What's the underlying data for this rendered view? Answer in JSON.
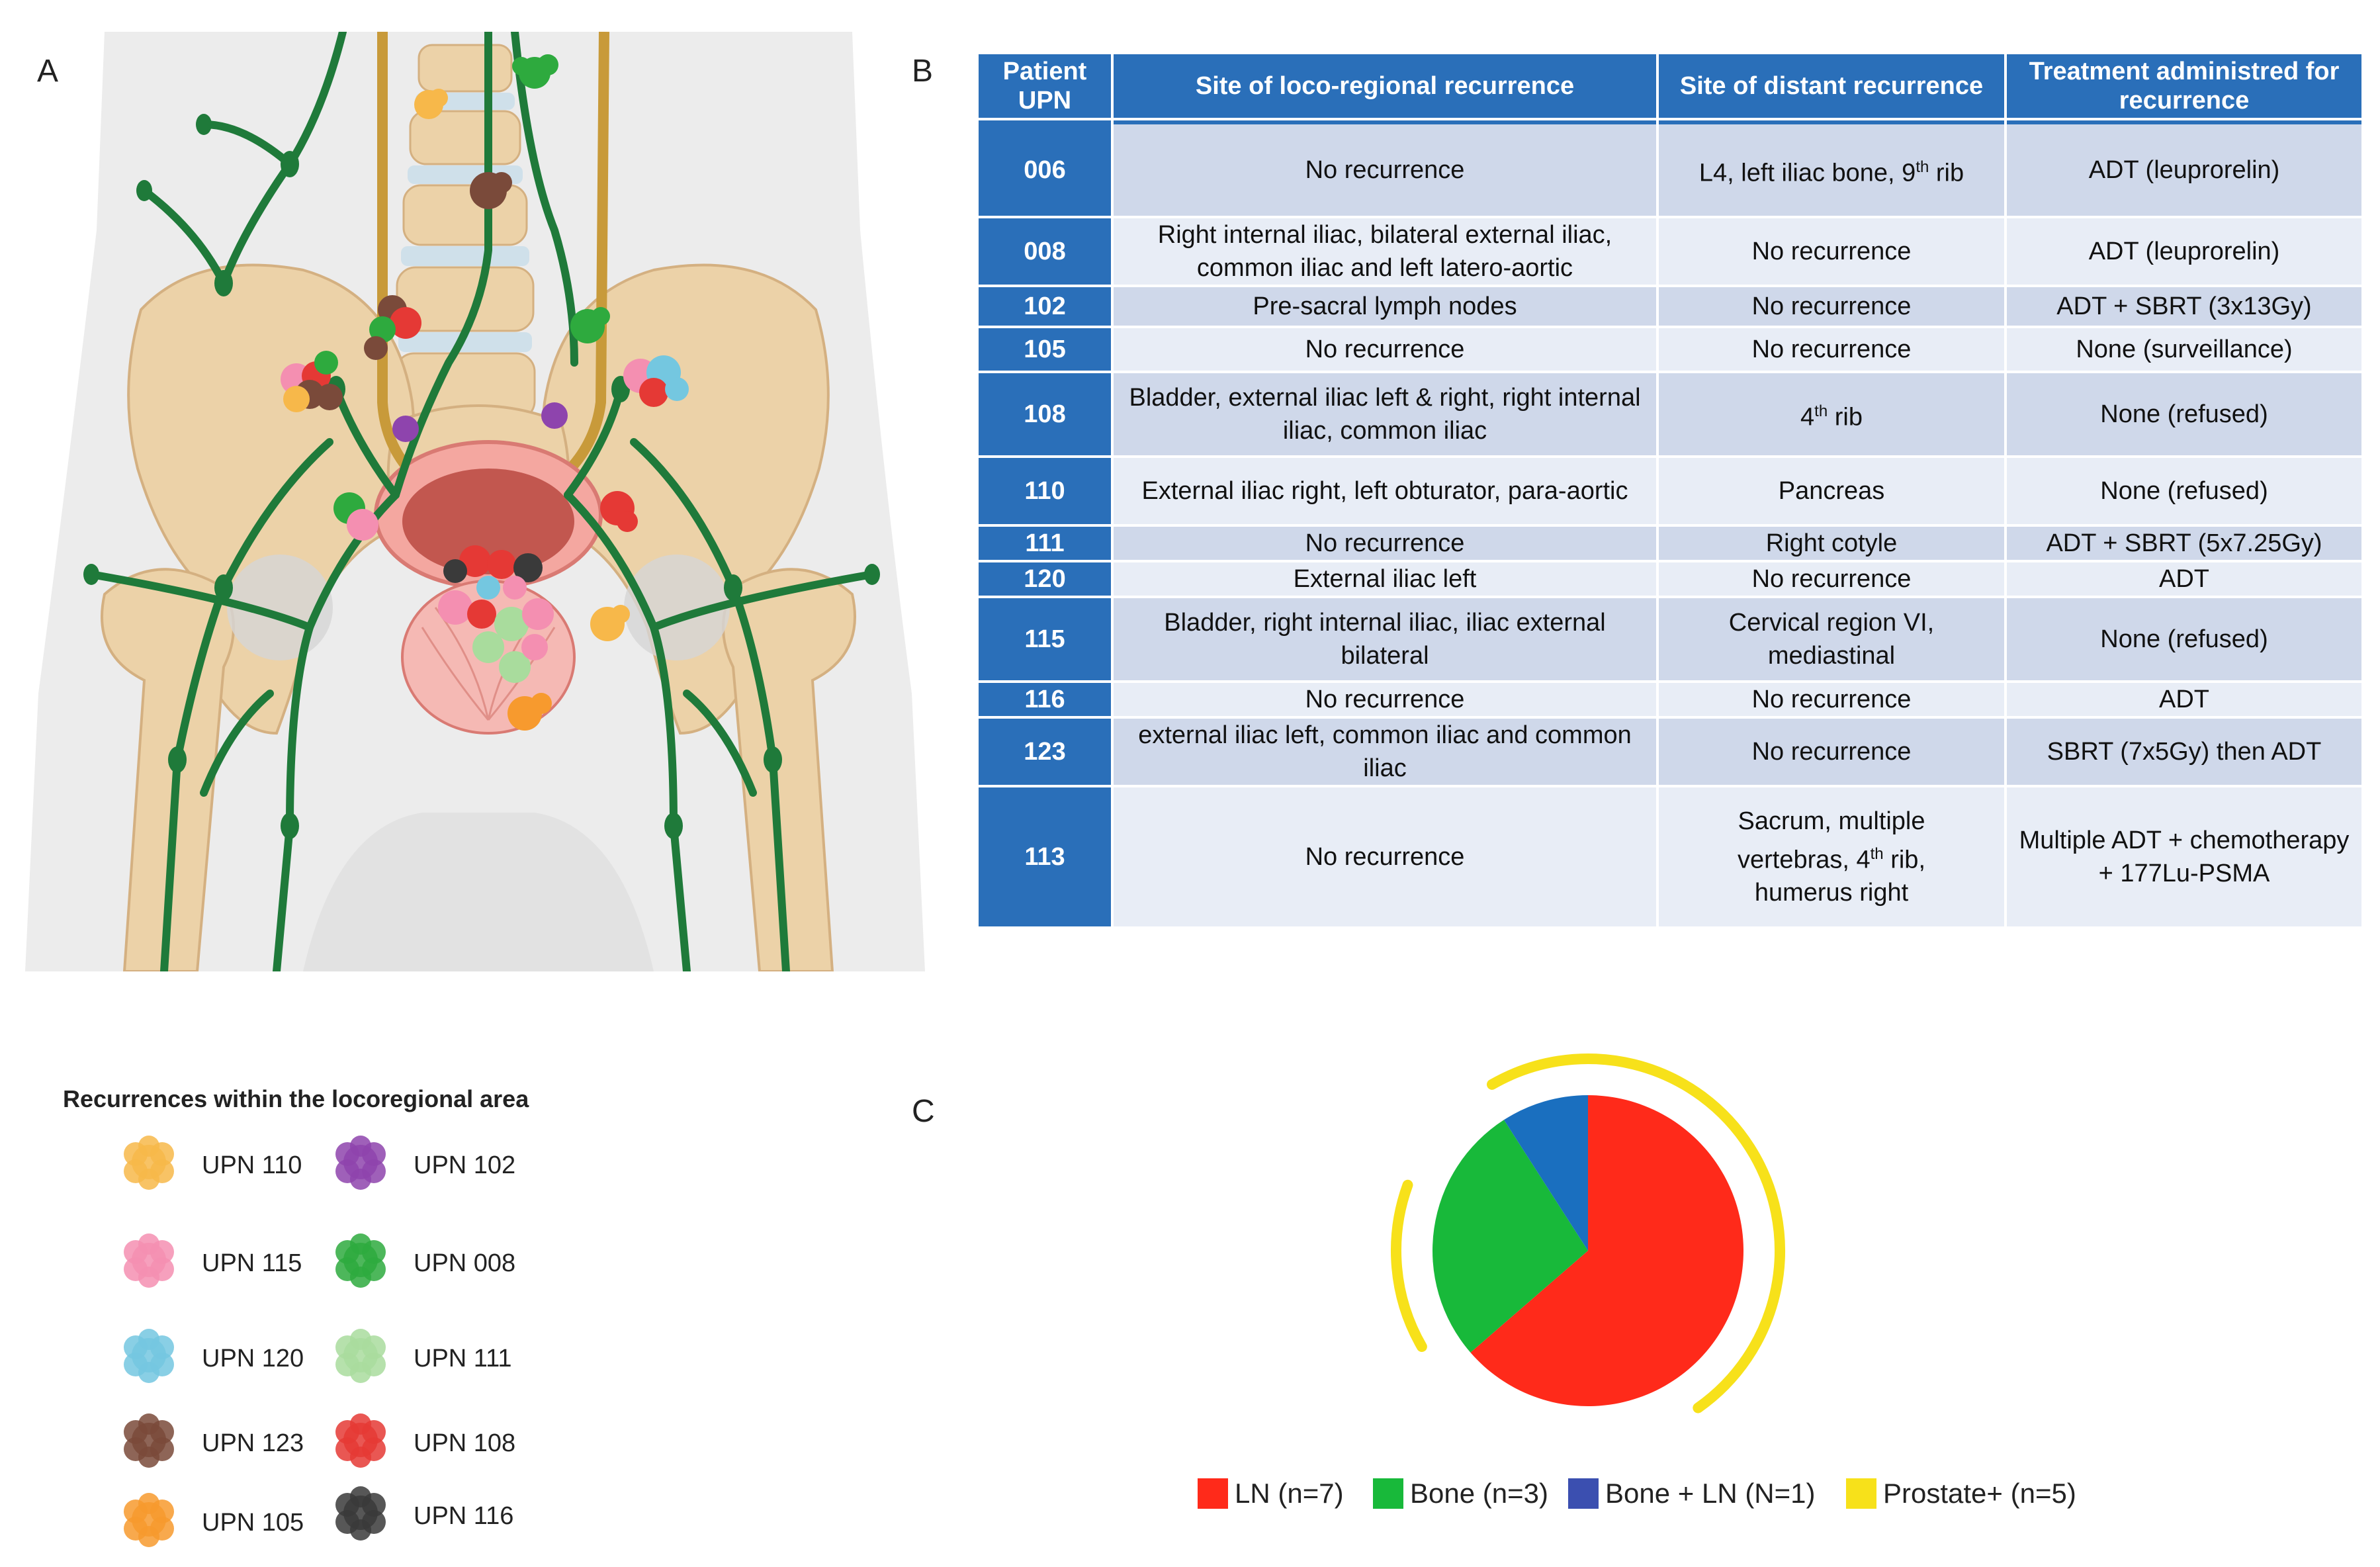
{
  "panels": {
    "a": "A",
    "b": "B",
    "c": "C"
  },
  "table": {
    "headers": [
      "Patient UPN",
      "Site of loco-regional recurrence",
      "Site of distant recurrence",
      "Treatment administred for recurrence"
    ],
    "rows": [
      {
        "upn": "006",
        "loco": "No recurrence",
        "distant": "L4, left iliac bone, 9th rib",
        "treatment": "ADT (leuprorelin)"
      },
      {
        "upn": "008",
        "loco": "Right internal iliac, bilateral external iliac, common iliac and left latero-aortic",
        "distant": "No recurrence",
        "treatment": "ADT (leuprorelin)"
      },
      {
        "upn": "102",
        "loco": "Pre-sacral lymph nodes",
        "distant": "No recurrence",
        "treatment": "ADT + SBRT (3x13Gy)"
      },
      {
        "upn": "105",
        "loco": "No recurrence",
        "distant": "No recurrence",
        "treatment": "None (surveillance)"
      },
      {
        "upn": "108",
        "loco": "Bladder, external iliac left & right, right internal iliac, common iliac",
        "distant": "4th rib",
        "treatment": "None (refused)"
      },
      {
        "upn": "110",
        "loco": "External iliac right, left obturator, para-aortic",
        "distant": "Pancreas",
        "treatment": "None (refused)"
      },
      {
        "upn": "111",
        "loco": "No recurrence",
        "distant": "Right cotyle",
        "treatment": "ADT + SBRT (5x7.25Gy)"
      },
      {
        "upn": "120",
        "loco": "External iliac left",
        "distant": "No recurrence",
        "treatment": "ADT"
      },
      {
        "upn": "115",
        "loco": "Bladder, right internal iliac, iliac external bilateral",
        "distant": "Cervical region VI, mediastinal",
        "treatment": "None (refused)"
      },
      {
        "upn": "116",
        "loco": "No recurrence",
        "distant": "No recurrence",
        "treatment": "ADT"
      },
      {
        "upn": "123",
        "loco": "external iliac left,  common iliac and common iliac",
        "distant": "No recurrence",
        "treatment": "SBRT (7x5Gy) then ADT"
      },
      {
        "upn": "113",
        "loco": "No recurrence",
        "distant": "Sacrum, multiple vertebras, 4th  rib, humerus right",
        "treatment": "Multiple ADT + chemotherapy + 177Lu-PSMA"
      }
    ]
  },
  "legend": {
    "title": "Recurrences within the locoregional area",
    "items": [
      {
        "label": "UPN 110",
        "color": "#f7b84a"
      },
      {
        "label": "UPN 102",
        "color": "#8e44ad"
      },
      {
        "label": "UPN 115",
        "color": "#f48fb1"
      },
      {
        "label": "UPN 008",
        "color": "#2eaa3e"
      },
      {
        "label": "UPN 120",
        "color": "#74c7e0"
      },
      {
        "label": "UPN 111",
        "color": "#a9dc9d"
      },
      {
        "label": "UPN 123",
        "color": "#7a4a3a"
      },
      {
        "label": "UPN 108",
        "color": "#e53935"
      },
      {
        "label": "UPN 105",
        "color": "#f79a2e"
      },
      {
        "label": "UPN 116",
        "color": "#3a3a3a"
      }
    ]
  },
  "chart_data": {
    "type": "pie",
    "title": "",
    "series": [
      {
        "name": "LN (n=7)",
        "value": 7,
        "color": "#ff2a1a"
      },
      {
        "name": "Bone (n=3)",
        "value": 3,
        "color": "#18b93a"
      },
      {
        "name": "Bone + LN (N=1)",
        "value": 1,
        "color": "#1a6fbf"
      }
    ],
    "overlay_arc": {
      "name": "Prostate+ (n=5)",
      "value": 5,
      "color": "#f7e11a"
    },
    "legend": [
      {
        "label": "LN (n=7)",
        "color": "#ff2a1a"
      },
      {
        "label": "Bone (n=3)",
        "color": "#18b93a"
      },
      {
        "label": "Bone + LN (N=1)",
        "color": "#3b4fb0"
      },
      {
        "label": "Prostate+ (n=5)",
        "color": "#f7e11a"
      }
    ],
    "legend_placement": "bottom"
  }
}
